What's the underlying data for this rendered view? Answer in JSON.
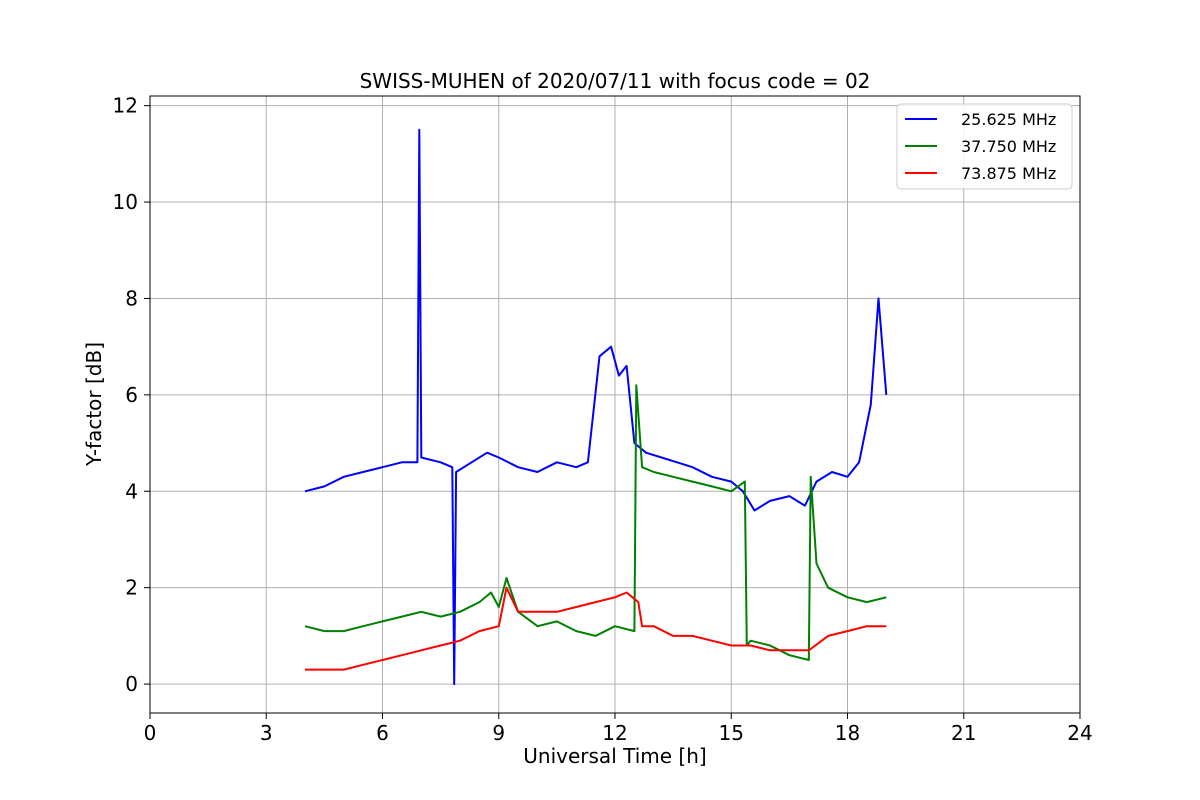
{
  "chart_data": {
    "type": "line",
    "title": "SWISS-MUHEN of 2020/07/11 with focus code = 02",
    "xlabel": "Universal Time [h]",
    "ylabel": "Y-factor [dB]",
    "xlim": [
      0,
      24
    ],
    "ylim": [
      -0.6,
      12.2
    ],
    "xticks": [
      0,
      3,
      6,
      9,
      12,
      15,
      18,
      21,
      24
    ],
    "yticks": [
      0,
      2,
      4,
      6,
      8,
      10,
      12
    ],
    "grid": true,
    "legend_position": "top-right",
    "series": [
      {
        "name": "25.625 MHz",
        "color": "#0000ff",
        "x": [
          4.0,
          4.5,
          5.0,
          5.5,
          6.0,
          6.5,
          6.9,
          6.95,
          7.0,
          7.5,
          7.8,
          7.85,
          7.9,
          8.3,
          8.7,
          9.0,
          9.5,
          10.0,
          10.5,
          11.0,
          11.3,
          11.6,
          11.9,
          12.1,
          12.3,
          12.5,
          12.8,
          13.2,
          13.6,
          14.0,
          14.5,
          15.0,
          15.3,
          15.6,
          16.0,
          16.5,
          16.9,
          17.2,
          17.6,
          18.0,
          18.3,
          18.6,
          18.8,
          19.0
        ],
        "y": [
          4.0,
          4.1,
          4.3,
          4.4,
          4.5,
          4.6,
          4.6,
          11.5,
          4.7,
          4.6,
          4.5,
          0.0,
          4.4,
          4.6,
          4.8,
          4.7,
          4.5,
          4.4,
          4.6,
          4.5,
          4.6,
          6.8,
          7.0,
          6.4,
          6.6,
          5.0,
          4.8,
          4.7,
          4.6,
          4.5,
          4.3,
          4.2,
          4.0,
          3.6,
          3.8,
          3.9,
          3.7,
          4.2,
          4.4,
          4.3,
          4.6,
          5.8,
          8.0,
          6.0
        ]
      },
      {
        "name": "37.750 MHz",
        "color": "#008000",
        "x": [
          4.0,
          4.5,
          5.0,
          5.5,
          6.0,
          6.5,
          7.0,
          7.5,
          8.0,
          8.5,
          8.8,
          9.0,
          9.2,
          9.5,
          10.0,
          10.5,
          11.0,
          11.5,
          12.0,
          12.5,
          12.55,
          12.7,
          13.0,
          13.5,
          14.0,
          14.5,
          15.0,
          15.35,
          15.4,
          15.5,
          16.0,
          16.5,
          17.0,
          17.05,
          17.2,
          17.5,
          18.0,
          18.5,
          19.0
        ],
        "y": [
          1.2,
          1.1,
          1.1,
          1.2,
          1.3,
          1.4,
          1.5,
          1.4,
          1.5,
          1.7,
          1.9,
          1.6,
          2.2,
          1.5,
          1.2,
          1.3,
          1.1,
          1.0,
          1.2,
          1.1,
          6.2,
          4.5,
          4.4,
          4.3,
          4.2,
          4.1,
          4.0,
          4.2,
          0.8,
          0.9,
          0.8,
          0.6,
          0.5,
          4.3,
          2.5,
          2.0,
          1.8,
          1.7,
          1.8
        ]
      },
      {
        "name": "73.875 MHz",
        "color": "#ff0000",
        "x": [
          4.0,
          4.5,
          5.0,
          5.5,
          6.0,
          6.5,
          7.0,
          7.5,
          8.0,
          8.5,
          9.0,
          9.2,
          9.5,
          10.0,
          10.5,
          11.0,
          11.5,
          12.0,
          12.3,
          12.6,
          12.7,
          13.0,
          13.5,
          14.0,
          14.5,
          15.0,
          15.5,
          16.0,
          16.5,
          17.0,
          17.5,
          18.0,
          18.5,
          19.0
        ],
        "y": [
          0.3,
          0.3,
          0.3,
          0.4,
          0.5,
          0.6,
          0.7,
          0.8,
          0.9,
          1.1,
          1.2,
          2.0,
          1.5,
          1.5,
          1.5,
          1.6,
          1.7,
          1.8,
          1.9,
          1.7,
          1.2,
          1.2,
          1.0,
          1.0,
          0.9,
          0.8,
          0.8,
          0.7,
          0.7,
          0.7,
          1.0,
          1.1,
          1.2,
          1.2
        ]
      }
    ]
  }
}
